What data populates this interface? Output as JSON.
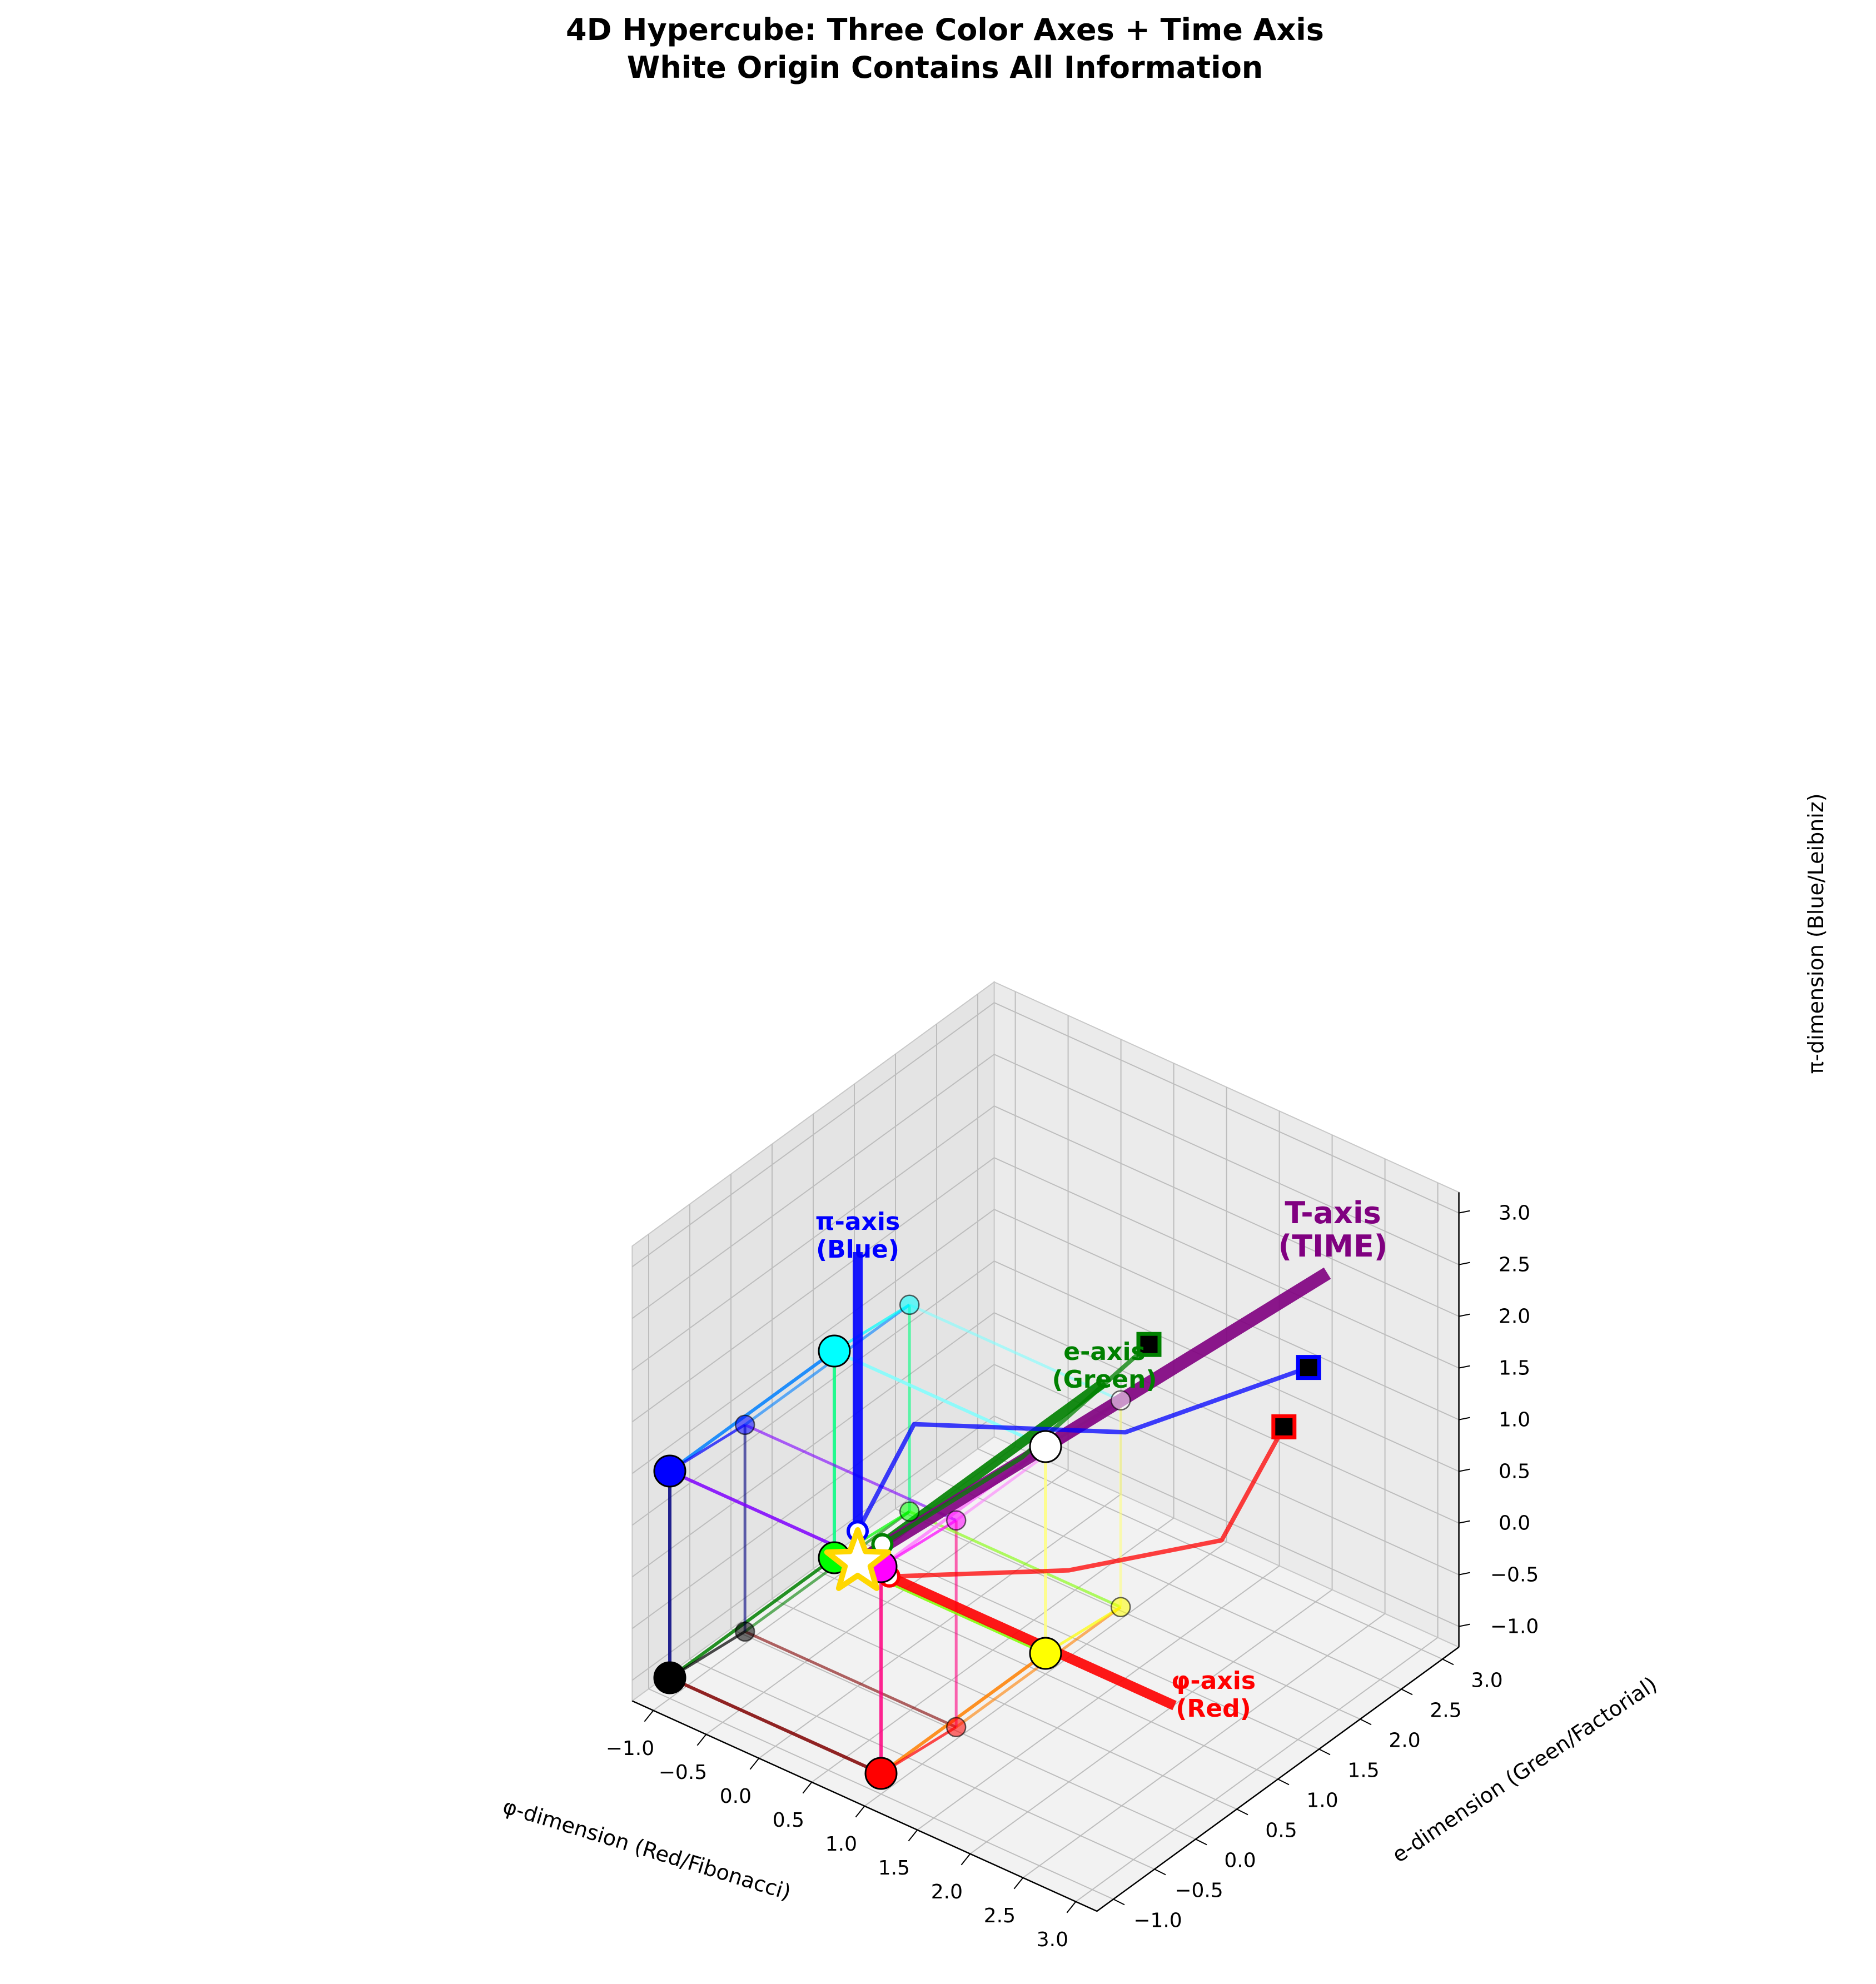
{
  "chart_data": {
    "type": "scatter",
    "projection": "3d",
    "title_lines": [
      "4D Hypercube: Three Color Axes + Time Axis",
      "White Origin Contains All Information"
    ],
    "xlabel": "φ-dimension (Red/Fibonacci)",
    "ylabel": "e-dimension (Green/Factorial)",
    "zlabel": "π-dimension (Blue/Leibniz)",
    "xlim": [
      -1.2,
      3.2
    ],
    "ylim": [
      -1.2,
      3.2
    ],
    "zlim": [
      -1.2,
      3.2
    ],
    "x_ticks": [
      "−1.0",
      "−0.5",
      "0.0",
      "0.5",
      "1.0",
      "1.5",
      "2.0",
      "2.5",
      "3.0"
    ],
    "y_ticks": [
      "−1.0",
      "−0.5",
      "0.0",
      "0.5",
      "1.0",
      "1.5",
      "2.0",
      "2.5",
      "3.0"
    ],
    "z_ticks": [
      "−1.0",
      "−0.5",
      "0.0",
      "0.5",
      "1.0",
      "1.5",
      "2.0",
      "2.5",
      "3.0"
    ],
    "x_tick_values": [
      -1.0,
      -0.5,
      0.0,
      0.5,
      1.0,
      1.5,
      2.0,
      2.5,
      3.0
    ],
    "y_tick_values": [
      -1.0,
      -0.5,
      0.0,
      0.5,
      1.0,
      1.5,
      2.0,
      2.5,
      3.0
    ],
    "z_tick_values": [
      -1.0,
      -0.5,
      0.0,
      0.5,
      1.0,
      1.5,
      2.0,
      2.5,
      3.0
    ],
    "grid": true,
    "time_offset": [
      0.4,
      0.4,
      0.4
    ],
    "inner_cube": {
      "vertices": [
        {
          "name": "black",
          "color": "#000000",
          "coords": [
            -1,
            -1,
            -1
          ]
        },
        {
          "name": "red",
          "color": "#ff0000",
          "coords": [
            1,
            -1,
            -1
          ]
        },
        {
          "name": "green",
          "color": "#00ff00",
          "coords": [
            -1,
            1,
            -1
          ]
        },
        {
          "name": "blue",
          "color": "#0000ff",
          "coords": [
            -1,
            -1,
            1
          ]
        },
        {
          "name": "yellow",
          "color": "#ffff00",
          "coords": [
            1,
            1,
            -1
          ]
        },
        {
          "name": "magenta",
          "color": "#ff00ff",
          "coords": [
            1,
            -1,
            1
          ]
        },
        {
          "name": "cyan",
          "color": "#00ffff",
          "coords": [
            -1,
            1,
            1
          ]
        },
        {
          "name": "white",
          "color": "#ffffff",
          "coords": [
            1,
            1,
            1
          ]
        }
      ]
    },
    "origin_star": {
      "coords": [
        0,
        0,
        0
      ],
      "color": "#ffd700",
      "label": "☆"
    },
    "axes": [
      {
        "label_lines": [
          "φ-axis",
          "(Red)"
        ],
        "color": "#ff0000",
        "end": [
          3,
          0,
          0
        ]
      },
      {
        "label_lines": [
          "e-axis",
          "(Green)"
        ],
        "color": "#008000",
        "end": [
          0,
          3,
          0
        ]
      },
      {
        "label_lines": [
          "π-axis",
          "(Blue)"
        ],
        "color": "#0000ff",
        "end": [
          0,
          0,
          3
        ]
      },
      {
        "label_lines": [
          "T-axis",
          "(TIME)"
        ],
        "color": "#800080",
        "end": [
          2.5,
          2.5,
          2.5
        ]
      }
    ],
    "sequences": [
      {
        "color": "#ff0000",
        "points": [
          [
            0.3,
            0,
            0
          ],
          [
            1.3,
            0.9,
            0
          ],
          [
            2.2,
            1.6,
            0.3
          ],
          [
            2.4,
            2.1,
            1.2
          ]
        ]
      },
      {
        "color": "#008000",
        "points": [
          [
            0,
            0.3,
            0
          ],
          [
            0.7,
            1.1,
            0.7
          ],
          [
            1.2,
            2.0,
            1.5
          ]
        ]
      },
      {
        "color": "#0000ff",
        "points": [
          [
            0,
            0,
            0.3
          ],
          [
            0.3,
            0.3,
            1.3
          ],
          [
            1.6,
            1.2,
            1.3
          ],
          [
            2.4,
            2.4,
            1.6
          ]
        ]
      }
    ]
  }
}
